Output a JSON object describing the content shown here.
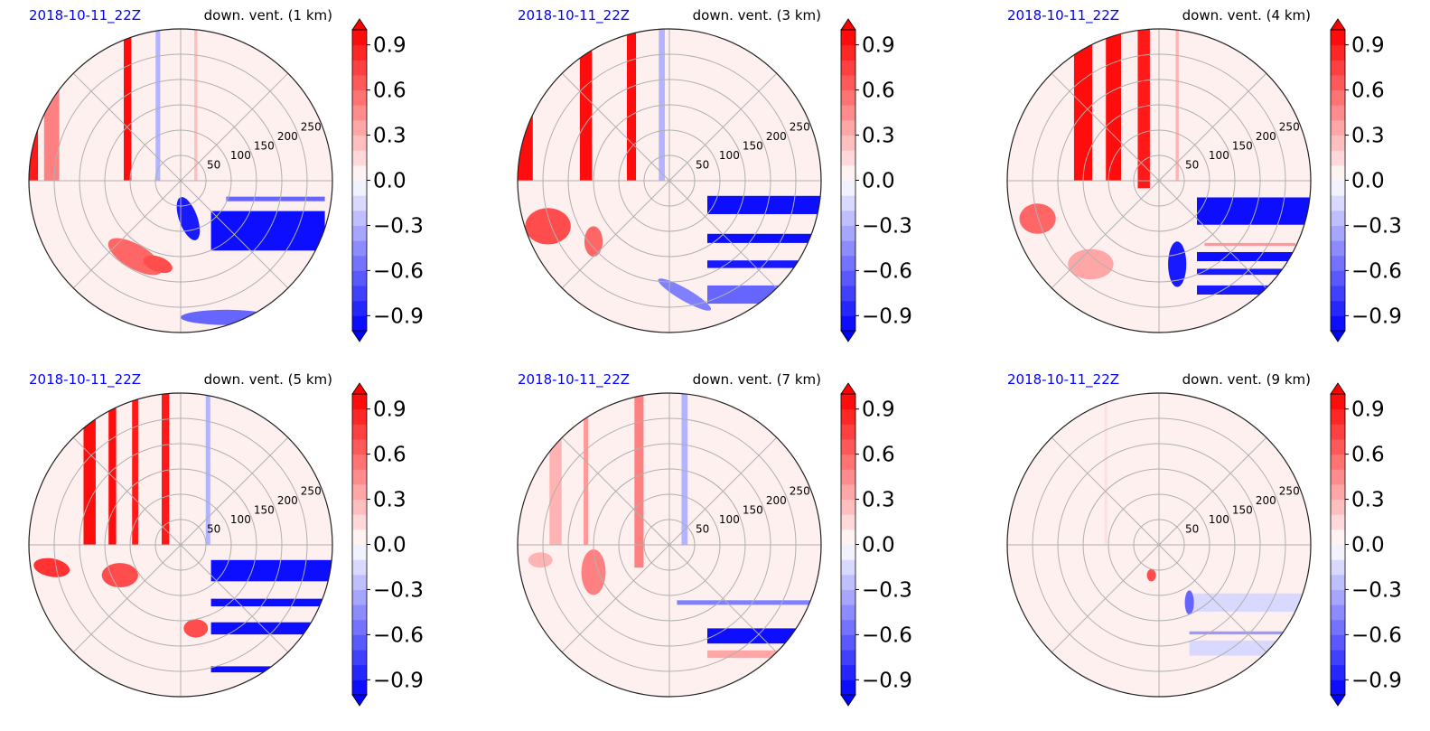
{
  "chart_data": [
    {
      "type": "heatmap",
      "date_label": "2018-10-11_22Z",
      "title": "down. vent. (1 km)",
      "radial_ticks": [
        50,
        100,
        150,
        200,
        250
      ],
      "colorbar": {
        "ticks": [
          "0.9",
          "0.6",
          "0.3",
          "0.0",
          "−0.3",
          "−0.6",
          "−0.9"
        ],
        "range": [
          -1,
          1
        ],
        "extend": "both",
        "low_color": "#0000ff",
        "high_color": "#ff0000"
      },
      "features": [
        {
          "kind": "stripe",
          "orient": "v",
          "pos": -0.98,
          "from": 0.0,
          "to": -0.62,
          "width": 0.08,
          "value": 0.9
        },
        {
          "kind": "stripe",
          "orient": "v",
          "pos": -0.85,
          "from": 0.0,
          "to": -0.75,
          "width": 0.1,
          "value": 0.5
        },
        {
          "kind": "stripe",
          "orient": "v",
          "pos": -0.35,
          "from": 0.0,
          "to": -1.0,
          "width": 0.05,
          "value": 0.95
        },
        {
          "kind": "stripe",
          "orient": "v",
          "pos": -0.15,
          "from": 0.0,
          "to": -1.0,
          "width": 0.03,
          "value": -0.3
        },
        {
          "kind": "stripe",
          "orient": "v",
          "pos": 0.1,
          "from": 0.0,
          "to": -1.0,
          "width": 0.02,
          "value": 0.25
        },
        {
          "kind": "stripe",
          "orient": "h",
          "pos": 0.33,
          "from": 0.2,
          "to": 0.95,
          "width": 0.26,
          "value": -0.95
        },
        {
          "kind": "stripe",
          "orient": "h",
          "pos": 0.12,
          "from": 0.3,
          "to": 0.95,
          "width": 0.03,
          "value": -0.6
        },
        {
          "kind": "blob",
          "cx": -0.3,
          "cy": 0.5,
          "rx": 0.2,
          "ry": 0.08,
          "rot": 30,
          "value": 0.6
        },
        {
          "kind": "blob",
          "cx": -0.15,
          "cy": 0.55,
          "rx": 0.1,
          "ry": 0.05,
          "rot": 20,
          "value": 0.7
        },
        {
          "kind": "blob",
          "cx": 0.05,
          "cy": 0.25,
          "rx": 0.06,
          "ry": 0.15,
          "rot": -20,
          "value": -0.9
        },
        {
          "kind": "blob",
          "cx": 0.3,
          "cy": 0.9,
          "rx": 0.3,
          "ry": 0.05,
          "rot": 0,
          "value": -0.6
        }
      ]
    },
    {
      "type": "heatmap",
      "date_label": "2018-10-11_22Z",
      "title": "down. vent. (3 km)",
      "radial_ticks": [
        50,
        100,
        150,
        200,
        250
      ],
      "colorbar": {
        "ticks": [
          "0.9",
          "0.6",
          "0.3",
          "0.0",
          "−0.3",
          "−0.6",
          "−0.9"
        ],
        "range": [
          -1,
          1
        ],
        "extend": "both",
        "low_color": "#0000ff",
        "high_color": "#ff0000"
      },
      "features": [
        {
          "kind": "stripe",
          "orient": "v",
          "pos": -0.95,
          "from": 0.0,
          "to": -0.55,
          "width": 0.1,
          "value": 0.95
        },
        {
          "kind": "stripe",
          "orient": "v",
          "pos": -0.55,
          "from": 0.0,
          "to": -0.9,
          "width": 0.08,
          "value": 0.95
        },
        {
          "kind": "stripe",
          "orient": "v",
          "pos": -0.25,
          "from": 0.0,
          "to": -1.0,
          "width": 0.06,
          "value": 0.95
        },
        {
          "kind": "stripe",
          "orient": "v",
          "pos": -0.05,
          "from": 0.0,
          "to": -1.0,
          "width": 0.04,
          "value": -0.3
        },
        {
          "kind": "stripe",
          "orient": "h",
          "pos": 0.16,
          "from": 0.25,
          "to": 1.0,
          "width": 0.12,
          "value": -0.95
        },
        {
          "kind": "stripe",
          "orient": "h",
          "pos": 0.38,
          "from": 0.25,
          "to": 1.0,
          "width": 0.06,
          "value": -0.95
        },
        {
          "kind": "stripe",
          "orient": "h",
          "pos": 0.55,
          "from": 0.25,
          "to": 1.0,
          "width": 0.05,
          "value": -0.9
        },
        {
          "kind": "stripe",
          "orient": "h",
          "pos": 0.75,
          "from": 0.25,
          "to": 0.85,
          "width": 0.12,
          "value": -0.6
        },
        {
          "kind": "blob",
          "cx": -0.8,
          "cy": 0.3,
          "rx": 0.15,
          "ry": 0.12,
          "rot": 0,
          "value": 0.7
        },
        {
          "kind": "blob",
          "cx": -0.5,
          "cy": 0.4,
          "rx": 0.06,
          "ry": 0.1,
          "rot": 0,
          "value": 0.6
        },
        {
          "kind": "blob",
          "cx": 0.1,
          "cy": 0.75,
          "rx": 0.2,
          "ry": 0.04,
          "rot": 30,
          "value": -0.5
        }
      ]
    },
    {
      "type": "heatmap",
      "date_label": "2018-10-11_22Z",
      "title": "down. vent. (4 km)",
      "radial_ticks": [
        50,
        100,
        150,
        200,
        250
      ],
      "colorbar": {
        "ticks": [
          "0.9",
          "0.6",
          "0.3",
          "0.0",
          "−0.3",
          "−0.6",
          "−0.9"
        ],
        "range": [
          -1,
          1
        ],
        "extend": "both",
        "low_color": "#0000ff",
        "high_color": "#ff0000"
      },
      "features": [
        {
          "kind": "stripe",
          "orient": "v",
          "pos": -0.5,
          "from": 0.0,
          "to": -0.9,
          "width": 0.12,
          "value": 0.95
        },
        {
          "kind": "stripe",
          "orient": "v",
          "pos": -0.3,
          "from": 0.0,
          "to": -1.0,
          "width": 0.1,
          "value": 0.95
        },
        {
          "kind": "stripe",
          "orient": "v",
          "pos": -0.1,
          "from": 0.05,
          "to": -1.0,
          "width": 0.08,
          "value": 0.9
        },
        {
          "kind": "stripe",
          "orient": "v",
          "pos": 0.12,
          "from": 0.0,
          "to": -1.0,
          "width": 0.02,
          "value": 0.3
        },
        {
          "kind": "stripe",
          "orient": "h",
          "pos": 0.2,
          "from": 0.25,
          "to": 1.0,
          "width": 0.18,
          "value": -0.95
        },
        {
          "kind": "stripe",
          "orient": "h",
          "pos": 0.5,
          "from": 0.25,
          "to": 1.0,
          "width": 0.06,
          "value": -0.95
        },
        {
          "kind": "stripe",
          "orient": "h",
          "pos": 0.6,
          "from": 0.25,
          "to": 0.95,
          "width": 0.04,
          "value": -0.9
        },
        {
          "kind": "stripe",
          "orient": "h",
          "pos": 0.72,
          "from": 0.25,
          "to": 0.85,
          "width": 0.06,
          "value": -0.9
        },
        {
          "kind": "stripe",
          "orient": "h",
          "pos": 0.42,
          "from": 0.3,
          "to": 0.9,
          "width": 0.02,
          "value": 0.4
        },
        {
          "kind": "blob",
          "cx": -0.8,
          "cy": 0.25,
          "rx": 0.12,
          "ry": 0.1,
          "rot": 0,
          "value": 0.6
        },
        {
          "kind": "blob",
          "cx": -0.45,
          "cy": 0.55,
          "rx": 0.15,
          "ry": 0.1,
          "rot": 0,
          "value": 0.35
        },
        {
          "kind": "blob",
          "cx": 0.12,
          "cy": 0.55,
          "rx": 0.06,
          "ry": 0.15,
          "rot": 0,
          "value": -0.9
        }
      ]
    },
    {
      "type": "heatmap",
      "date_label": "2018-10-11_22Z",
      "title": "down. vent. (5 km)",
      "radial_ticks": [
        50,
        100,
        150,
        200,
        250
      ],
      "colorbar": {
        "ticks": [
          "0.9",
          "0.6",
          "0.3",
          "0.0",
          "−0.3",
          "−0.6",
          "−0.9"
        ],
        "range": [
          -1,
          1
        ],
        "extend": "both",
        "low_color": "#0000ff",
        "high_color": "#ff0000"
      },
      "features": [
        {
          "kind": "stripe",
          "orient": "v",
          "pos": -0.6,
          "from": 0.0,
          "to": -0.85,
          "width": 0.08,
          "value": 0.95
        },
        {
          "kind": "stripe",
          "orient": "v",
          "pos": -0.45,
          "from": 0.0,
          "to": -0.95,
          "width": 0.05,
          "value": 0.95
        },
        {
          "kind": "stripe",
          "orient": "v",
          "pos": -0.3,
          "from": 0.0,
          "to": -1.0,
          "width": 0.04,
          "value": 0.9
        },
        {
          "kind": "stripe",
          "orient": "v",
          "pos": -0.1,
          "from": 0.0,
          "to": -1.0,
          "width": 0.05,
          "value": 0.9
        },
        {
          "kind": "stripe",
          "orient": "v",
          "pos": 0.18,
          "from": 0.0,
          "to": -1.0,
          "width": 0.03,
          "value": -0.3
        },
        {
          "kind": "stripe",
          "orient": "h",
          "pos": 0.17,
          "from": 0.2,
          "to": 1.0,
          "width": 0.14,
          "value": -0.95
        },
        {
          "kind": "stripe",
          "orient": "h",
          "pos": 0.38,
          "from": 0.2,
          "to": 1.0,
          "width": 0.05,
          "value": -0.95
        },
        {
          "kind": "stripe",
          "orient": "h",
          "pos": 0.55,
          "from": 0.2,
          "to": 0.95,
          "width": 0.08,
          "value": -0.95
        },
        {
          "kind": "stripe",
          "orient": "h",
          "pos": 0.82,
          "from": 0.2,
          "to": 0.7,
          "width": 0.04,
          "value": -0.95
        },
        {
          "kind": "blob",
          "cx": -0.85,
          "cy": 0.15,
          "rx": 0.12,
          "ry": 0.06,
          "rot": 10,
          "value": 0.8
        },
        {
          "kind": "blob",
          "cx": -0.4,
          "cy": 0.2,
          "rx": 0.12,
          "ry": 0.08,
          "rot": 0,
          "value": 0.7
        },
        {
          "kind": "blob",
          "cx": 0.1,
          "cy": 0.55,
          "rx": 0.08,
          "ry": 0.06,
          "rot": 0,
          "value": 0.7
        }
      ]
    },
    {
      "type": "heatmap",
      "date_label": "2018-10-11_22Z",
      "title": "down. vent. (7 km)",
      "radial_ticks": [
        50,
        100,
        150,
        200,
        250
      ],
      "colorbar": {
        "ticks": [
          "0.9",
          "0.6",
          "0.3",
          "0.0",
          "−0.3",
          "−0.6",
          "−0.9"
        ],
        "range": [
          -1,
          1
        ],
        "extend": "both",
        "low_color": "#0000ff",
        "high_color": "#ff0000"
      },
      "features": [
        {
          "kind": "stripe",
          "orient": "v",
          "pos": -0.75,
          "from": 0.0,
          "to": -0.75,
          "width": 0.08,
          "value": 0.3
        },
        {
          "kind": "stripe",
          "orient": "v",
          "pos": -0.55,
          "from": 0.0,
          "to": -0.85,
          "width": 0.03,
          "value": 0.4
        },
        {
          "kind": "stripe",
          "orient": "v",
          "pos": -0.2,
          "from": 0.15,
          "to": -1.0,
          "width": 0.06,
          "value": 0.5
        },
        {
          "kind": "stripe",
          "orient": "v",
          "pos": 0.1,
          "from": 0.0,
          "to": -1.0,
          "width": 0.04,
          "value": -0.3
        },
        {
          "kind": "stripe",
          "orient": "h",
          "pos": 0.38,
          "from": 0.05,
          "to": 0.95,
          "width": 0.03,
          "value": -0.5
        },
        {
          "kind": "stripe",
          "orient": "h",
          "pos": 0.6,
          "from": 0.25,
          "to": 0.9,
          "width": 0.1,
          "value": -0.95
        },
        {
          "kind": "stripe",
          "orient": "h",
          "pos": 0.72,
          "from": 0.25,
          "to": 0.8,
          "width": 0.05,
          "value": 0.35
        },
        {
          "kind": "blob",
          "cx": -0.5,
          "cy": 0.18,
          "rx": 0.08,
          "ry": 0.15,
          "rot": 0,
          "value": 0.5
        },
        {
          "kind": "blob",
          "cx": -0.85,
          "cy": 0.1,
          "rx": 0.08,
          "ry": 0.05,
          "rot": 0,
          "value": 0.3
        }
      ]
    },
    {
      "type": "heatmap",
      "date_label": "2018-10-11_22Z",
      "title": "down. vent. (9 km)",
      "radial_ticks": [
        50,
        100,
        150,
        200,
        250
      ],
      "colorbar": {
        "ticks": [
          "0.9",
          "0.6",
          "0.3",
          "0.0",
          "−0.3",
          "−0.6",
          "−0.9"
        ],
        "range": [
          -1,
          1
        ],
        "extend": "both",
        "low_color": "#0000ff",
        "high_color": "#ff0000"
      },
      "features": [
        {
          "kind": "stripe",
          "orient": "h",
          "pos": 0.38,
          "from": 0.2,
          "to": 1.0,
          "width": 0.12,
          "value": -0.15
        },
        {
          "kind": "stripe",
          "orient": "h",
          "pos": 0.68,
          "from": 0.2,
          "to": 0.95,
          "width": 0.1,
          "value": -0.15
        },
        {
          "kind": "stripe",
          "orient": "h",
          "pos": 0.58,
          "from": 0.2,
          "to": 0.95,
          "width": 0.02,
          "value": -0.4
        },
        {
          "kind": "stripe",
          "orient": "v",
          "pos": -0.35,
          "from": 0.0,
          "to": -1.0,
          "width": 0.02,
          "value": 0.12
        },
        {
          "kind": "blob",
          "cx": -0.05,
          "cy": 0.2,
          "rx": 0.03,
          "ry": 0.04,
          "rot": 0,
          "value": 0.7
        },
        {
          "kind": "blob",
          "cx": 0.2,
          "cy": 0.38,
          "rx": 0.03,
          "ry": 0.08,
          "rot": 0,
          "value": -0.6
        }
      ]
    }
  ]
}
